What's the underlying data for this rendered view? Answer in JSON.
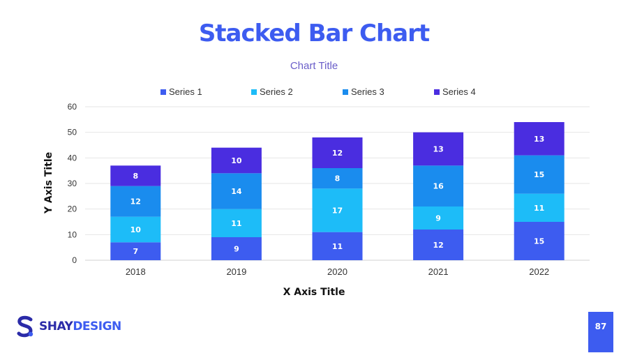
{
  "slide": {
    "title": "Stacked Bar Chart",
    "page_number": "87"
  },
  "brand": {
    "logo_first": "SHAY",
    "logo_second": "DESIGN",
    "color_dark": "#2b2ba8",
    "color_light": "#3d5cf0"
  },
  "chart_data": {
    "type": "bar",
    "stacked": true,
    "title": "Chart Title",
    "xlabel": "X Axis Title",
    "ylabel": "Y Axis Title",
    "ylim": [
      0,
      60
    ],
    "yticks": [
      0,
      10,
      20,
      30,
      40,
      50,
      60
    ],
    "grid": true,
    "legend_position": "top",
    "categories": [
      "2018",
      "2019",
      "2020",
      "2021",
      "2022"
    ],
    "series": [
      {
        "name": "Series 1",
        "color": "#3d5cf0",
        "values": [
          7,
          9,
          11,
          12,
          15
        ]
      },
      {
        "name": "Series 2",
        "color": "#1dbcf8",
        "values": [
          10,
          11,
          17,
          9,
          11
        ]
      },
      {
        "name": "Series 3",
        "color": "#1a8cee",
        "values": [
          12,
          14,
          8,
          16,
          15
        ]
      },
      {
        "name": "Series 4",
        "color": "#4a2de0",
        "values": [
          8,
          10,
          12,
          13,
          13
        ]
      }
    ]
  }
}
